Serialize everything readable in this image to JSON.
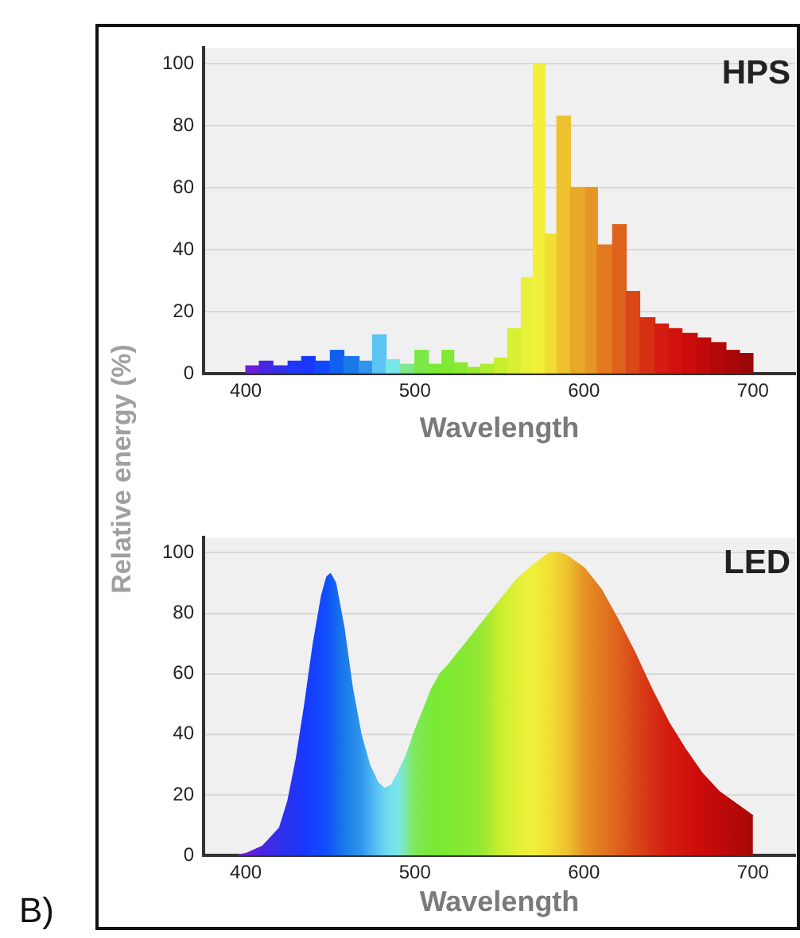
{
  "chart_data": [
    {
      "type": "histogram",
      "title": "HPS",
      "xlabel": "Wavelength",
      "ylabel": "Relative energy (%)",
      "bins": [
        400,
        408,
        416,
        425,
        433,
        441,
        450,
        458,
        467,
        475,
        483,
        491,
        500,
        508,
        516,
        523,
        531,
        539,
        547,
        555,
        563,
        570,
        577,
        584,
        592,
        601,
        608,
        617,
        625,
        633,
        642,
        650,
        658,
        667,
        675,
        684,
        692,
        700
      ],
      "values": [
        2.5,
        4,
        2.5,
        4,
        5.5,
        4,
        7.5,
        5.5,
        4,
        12.5,
        4.5,
        3,
        7.5,
        3,
        7.5,
        3.5,
        2,
        3,
        5,
        14.5,
        31,
        100,
        45,
        83,
        60,
        60,
        41.5,
        48,
        26.5,
        18,
        16,
        14.5,
        13,
        11.5,
        10,
        7.5,
        6.5
      ],
      "colors": [
        "#6a1fd8",
        "#4a25e2",
        "#3030ea",
        "#2035f5",
        "#1838ff",
        "#1248ff",
        "#1060f0",
        "#1a78e8",
        "#2f95ec",
        "#5cc4f2",
        "#7ae6ea",
        "#7ee88a",
        "#7ce84a",
        "#78ea36",
        "#7eea30",
        "#88e832",
        "#98e834",
        "#b0ec30",
        "#c8ee2e",
        "#d8f034",
        "#e8f23a",
        "#f2f03a",
        "#f0de34",
        "#eec22e",
        "#eaa828",
        "#e69424",
        "#e27a20",
        "#de621c",
        "#da4818",
        "#d63014",
        "#d41c10",
        "#d2120c",
        "#ca0c0a",
        "#c00a0a",
        "#b40808",
        "#a80808",
        "#9c0808"
      ],
      "xlim": [
        375,
        725
      ],
      "xticks": [
        400,
        500,
        600,
        700
      ],
      "ylim": [
        0,
        105
      ],
      "yticks": [
        0,
        20,
        40,
        60,
        80,
        100
      ],
      "grid": "y"
    },
    {
      "type": "area",
      "title": "LED",
      "xlabel": "Wavelength",
      "annotations": [
        "B)"
      ],
      "x": [
        395,
        400,
        410,
        420,
        425,
        430,
        435,
        440,
        445,
        448,
        450,
        453,
        458,
        463,
        468,
        473,
        478,
        482,
        486,
        490,
        495,
        500,
        505,
        510,
        515,
        520,
        530,
        540,
        550,
        560,
        570,
        580,
        585,
        590,
        600,
        610,
        620,
        630,
        640,
        650,
        660,
        670,
        680,
        690,
        700
      ],
      "series": [
        {
          "values": [
            0,
            0.5,
            3,
            9,
            18,
            32,
            50,
            70,
            86,
            92,
            93,
            90,
            75,
            55,
            40,
            30,
            24,
            22,
            23,
            27,
            33,
            41,
            48,
            55,
            60,
            63,
            70,
            77,
            84,
            91,
            96,
            100,
            100,
            99,
            95,
            88,
            78,
            67,
            55,
            44,
            35,
            27,
            21,
            17,
            13
          ],
          "colors": [
            "#7a1fd0",
            "#6a1fd8",
            "#4a25e2",
            "#3030ea",
            "#2832f0",
            "#2035f5",
            "#1838ff",
            "#1442ff",
            "#1248ff",
            "#1150fa",
            "#1058f5",
            "#1266ee",
            "#1a78e8",
            "#2488ea",
            "#2f95ec",
            "#44aef0",
            "#5cc4f2",
            "#6ad6f0",
            "#74e0ec",
            "#7ae6ea",
            "#7ee8a0",
            "#7ee85a",
            "#7ce84a",
            "#78ea36",
            "#7cea32",
            "#7eea30",
            "#88e832",
            "#98e834",
            "#c8ee2e",
            "#e0f036",
            "#f2f03a",
            "#f0de34",
            "#efd030",
            "#eec22e",
            "#e69424",
            "#e27a20",
            "#de621c",
            "#da4818",
            "#d63014",
            "#d41c10",
            "#d2120c",
            "#ca0c0a",
            "#c00a0a",
            "#b40808",
            "#a80808"
          ]
        }
      ],
      "xlim": [
        375,
        725
      ],
      "xticks": [
        400,
        500,
        600,
        700
      ],
      "ylim": [
        0,
        105
      ],
      "yticks": [
        0,
        20,
        40,
        60,
        80,
        100
      ],
      "grid": "y"
    }
  ]
}
